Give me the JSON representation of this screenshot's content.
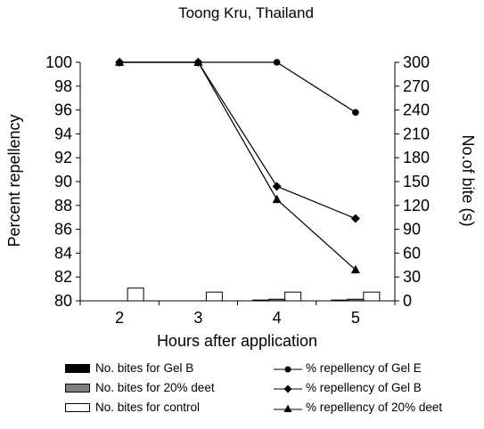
{
  "chart_data": {
    "type": "bar+line",
    "title": "Toong Kru, Thailand",
    "xlabel": "Hours after application",
    "ylabel_left": "Percent repellency",
    "ylabel_right": "No.of bite (s)",
    "categories": [
      "2",
      "3",
      "4",
      "5"
    ],
    "y_left": {
      "lim": [
        80,
        100
      ],
      "ticks": [
        "80",
        "82",
        "84",
        "86",
        "88",
        "90",
        "92",
        "94",
        "96",
        "98",
        "100"
      ]
    },
    "y_right": {
      "lim": [
        0,
        300
      ],
      "ticks": [
        "0",
        "30",
        "60",
        "90",
        "120",
        "150",
        "180",
        "210",
        "240",
        "270",
        "300"
      ]
    },
    "bar_series": [
      {
        "name": "No. bites for Gel B",
        "values": [
          0,
          0,
          1,
          1
        ],
        "color": "#000000"
      },
      {
        "name": "No. bites for 20% deet",
        "values": [
          0,
          0,
          2,
          2
        ],
        "color": "#808080"
      },
      {
        "name": "No. bites for control",
        "values": [
          16,
          11,
          11,
          11
        ],
        "color": "#ffffff"
      }
    ],
    "line_series": [
      {
        "name": "% repellency of Gel E",
        "marker": "circle",
        "values": [
          100,
          100,
          100,
          95.8
        ]
      },
      {
        "name": "% repellency of Gel B",
        "marker": "diamond",
        "values": [
          100,
          100,
          89.6,
          86.9
        ]
      },
      {
        "name": "% repellency of 20% deet",
        "marker": "triangle",
        "values": [
          100,
          100,
          88.5,
          82.6
        ]
      }
    ],
    "grid": false,
    "legend": "bottom"
  }
}
